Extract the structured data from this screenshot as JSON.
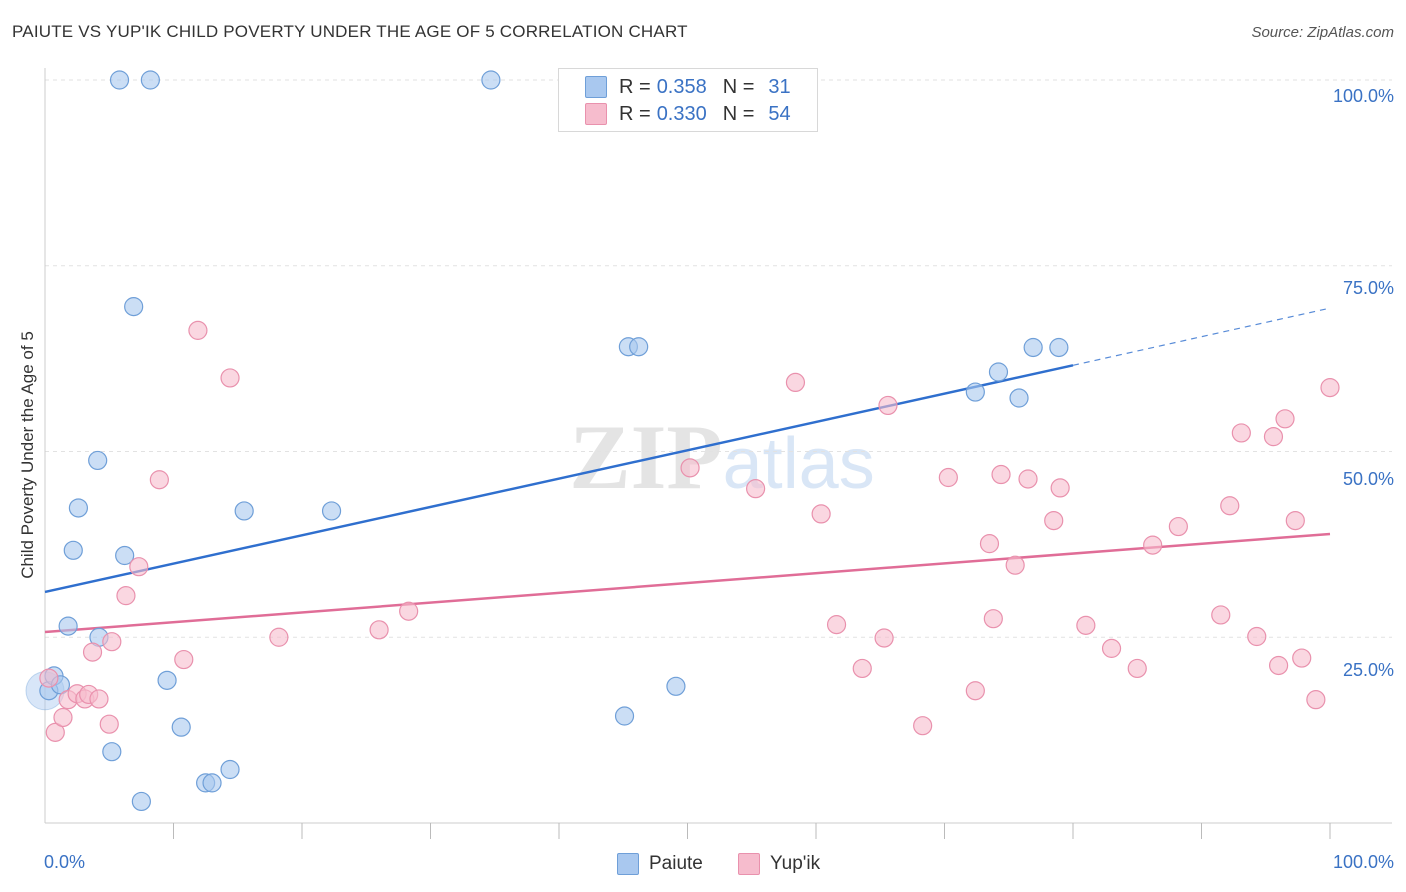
{
  "title": "PAIUTE VS YUP'IK CHILD POVERTY UNDER THE AGE OF 5 CORRELATION CHART",
  "source": "Source: ZipAtlas.com",
  "watermark": "ZIPatlas",
  "colors": {
    "paiute_fill": "#a9c8ef",
    "paiute_stroke": "#6f9fd8",
    "paiute_line": "#2f6fce",
    "yupik_fill": "#f6bccd",
    "yupik_stroke": "#e991ad",
    "yupik_line": "#e06d97",
    "tick_text": "#3a72c4",
    "grid": "#e2e2e2"
  },
  "legend": {
    "rows": [
      {
        "name": "Paiute",
        "r_label": "R =",
        "r_value": "0.358",
        "n_label": "N =",
        "n_value": "31"
      },
      {
        "name": "Yup'ik",
        "r_label": "R =",
        "r_value": "0.330",
        "n_label": "N =",
        "n_value": "54"
      }
    ]
  },
  "chart_data": {
    "type": "scatter",
    "title": "PAIUTE VS YUP'IK CHILD POVERTY UNDER THE AGE OF 5 CORRELATION CHART",
    "xlabel": "",
    "ylabel": "Child Poverty Under the Age of 5",
    "xlim": [
      0,
      100
    ],
    "ylim": [
      0,
      100
    ],
    "x_tick_labels": [
      "0.0%",
      "100.0%"
    ],
    "y_ticks": [
      25,
      50,
      75,
      100
    ],
    "y_tick_labels": [
      "25.0%",
      "50.0%",
      "75.0%",
      "100.0%"
    ],
    "grid": true,
    "legend_position": "top-center",
    "series": [
      {
        "name": "Paiute",
        "points": [
          [
            0.3,
            17.8
          ],
          [
            0.7,
            19.8
          ],
          [
            1.2,
            18.6
          ],
          [
            1.8,
            26.5
          ],
          [
            2.2,
            36.7
          ],
          [
            2.6,
            42.4
          ],
          [
            4.1,
            48.8
          ],
          [
            4.2,
            25.0
          ],
          [
            5.2,
            9.6
          ],
          [
            5.8,
            100.0
          ],
          [
            6.2,
            36.0
          ],
          [
            6.9,
            69.5
          ],
          [
            7.5,
            2.9
          ],
          [
            8.2,
            100.0
          ],
          [
            9.5,
            19.2
          ],
          [
            10.6,
            12.9
          ],
          [
            12.5,
            5.4
          ],
          [
            13.0,
            5.4
          ],
          [
            14.4,
            7.2
          ],
          [
            15.5,
            42.0
          ],
          [
            22.3,
            42.0
          ],
          [
            34.7,
            100.0
          ],
          [
            45.1,
            14.4
          ],
          [
            45.4,
            64.1
          ],
          [
            46.2,
            64.1
          ],
          [
            49.1,
            18.4
          ],
          [
            72.4,
            58.0
          ],
          [
            74.2,
            60.7
          ],
          [
            75.8,
            57.2
          ],
          [
            76.9,
            64.0
          ],
          [
            78.9,
            64.0
          ]
        ],
        "trend": {
          "x0": 0,
          "y0": 31.1,
          "x1": 80,
          "y1": 61.6,
          "x_end_dashed": 100,
          "y_end_dashed": 69.3
        }
      },
      {
        "name": "Yup'ik",
        "points": [
          [
            0.3,
            19.5
          ],
          [
            0.8,
            12.2
          ],
          [
            1.4,
            14.2
          ],
          [
            1.8,
            16.6
          ],
          [
            2.5,
            17.4
          ],
          [
            3.1,
            16.7
          ],
          [
            3.4,
            17.3
          ],
          [
            3.7,
            23.0
          ],
          [
            4.2,
            16.7
          ],
          [
            5.0,
            13.3
          ],
          [
            5.2,
            24.4
          ],
          [
            6.3,
            30.6
          ],
          [
            7.3,
            34.5
          ],
          [
            8.9,
            46.2
          ],
          [
            10.8,
            22.0
          ],
          [
            11.9,
            66.3
          ],
          [
            14.4,
            59.9
          ],
          [
            18.2,
            25.0
          ],
          [
            26.0,
            26.0
          ],
          [
            28.3,
            28.5
          ],
          [
            50.2,
            47.8
          ],
          [
            55.3,
            45.0
          ],
          [
            58.4,
            59.3
          ],
          [
            60.4,
            41.6
          ],
          [
            61.6,
            26.7
          ],
          [
            63.6,
            20.8
          ],
          [
            65.3,
            24.9
          ],
          [
            65.6,
            56.2
          ],
          [
            68.3,
            13.1
          ],
          [
            70.3,
            46.5
          ],
          [
            72.4,
            17.8
          ],
          [
            73.5,
            37.6
          ],
          [
            73.8,
            27.5
          ],
          [
            74.4,
            46.9
          ],
          [
            75.5,
            34.7
          ],
          [
            76.5,
            46.3
          ],
          [
            78.5,
            40.7
          ],
          [
            79.0,
            45.1
          ],
          [
            81.0,
            26.6
          ],
          [
            83.0,
            23.5
          ],
          [
            85.0,
            20.8
          ],
          [
            86.2,
            37.4
          ],
          [
            88.2,
            39.9
          ],
          [
            91.5,
            28.0
          ],
          [
            92.2,
            42.7
          ],
          [
            93.1,
            52.5
          ],
          [
            94.3,
            25.1
          ],
          [
            95.6,
            52.0
          ],
          [
            96.0,
            21.2
          ],
          [
            96.5,
            54.4
          ],
          [
            97.3,
            40.7
          ],
          [
            97.8,
            22.2
          ],
          [
            98.9,
            16.6
          ],
          [
            100.0,
            58.6
          ]
        ],
        "trend": {
          "x0": 0,
          "y0": 25.7,
          "x1": 100,
          "y1": 38.9
        }
      }
    ]
  }
}
